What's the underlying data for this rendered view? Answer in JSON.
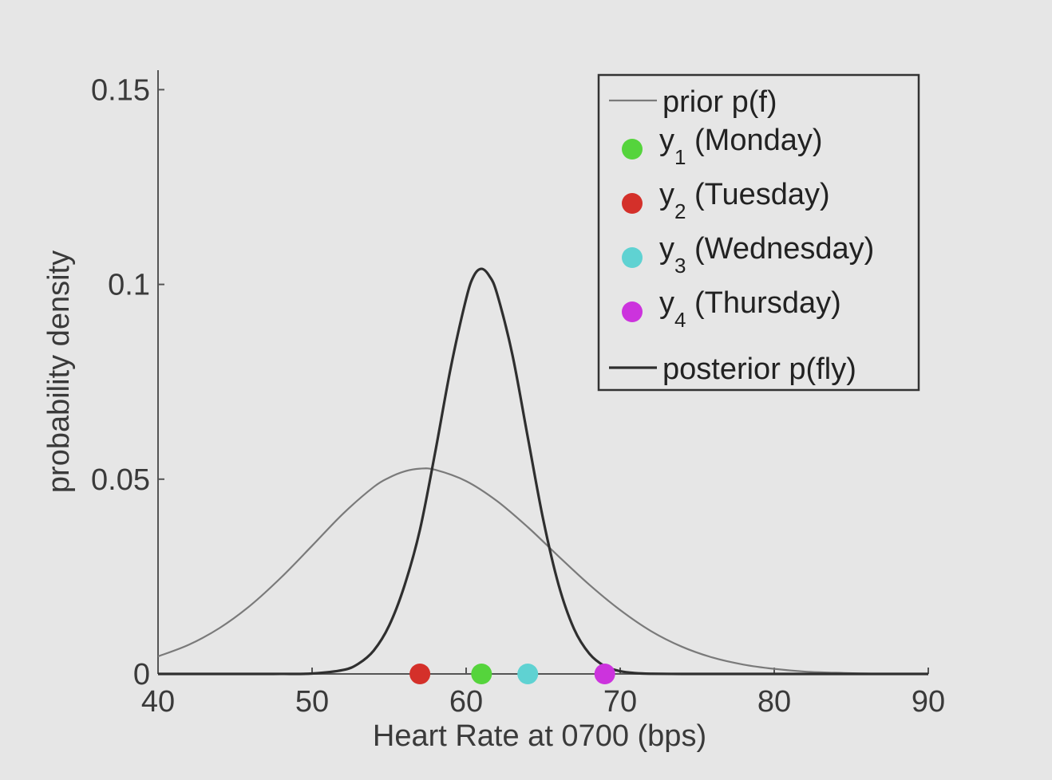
{
  "chart_data": {
    "type": "line",
    "xlabel": "Heart Rate at 0700 (bps)",
    "ylabel": "probability density",
    "xlim": [
      40,
      90
    ],
    "ylim": [
      0,
      0.155
    ],
    "x_ticks": [
      40,
      50,
      60,
      70,
      80,
      90
    ],
    "x_tick_labels": [
      "40",
      "50",
      "60",
      "70",
      "80",
      "90"
    ],
    "y_ticks": [
      0,
      0.05,
      0.1,
      0.15
    ],
    "y_tick_labels": [
      "0",
      "0.05",
      "0.1",
      "0.15"
    ],
    "grid": false,
    "legend_position": "top-right",
    "series": [
      {
        "name": "prior p(f)",
        "kind": "line",
        "color": "#7a7a7a",
        "x": [
          40,
          42,
          44,
          46,
          48,
          50,
          52,
          54,
          55,
          56,
          57,
          58,
          60,
          62,
          64,
          66,
          68,
          70,
          72,
          74,
          76,
          78,
          80,
          82,
          84,
          86,
          88,
          90
        ],
        "y": [
          0.0045,
          0.0075,
          0.0118,
          0.0176,
          0.0248,
          0.0329,
          0.0411,
          0.048,
          0.0504,
          0.052,
          0.0527,
          0.0524,
          0.0495,
          0.0444,
          0.0377,
          0.0302,
          0.0229,
          0.0164,
          0.011,
          0.007,
          0.0042,
          0.0024,
          0.0013,
          0.0006,
          0.0003,
          0.0001,
          5e-05,
          2e-05
        ]
      },
      {
        "name": "posterior p(fly)",
        "kind": "line",
        "color": "#2f2f2f",
        "x": [
          40,
          46,
          48,
          50,
          52,
          53,
          54,
          55,
          56,
          57,
          58,
          59,
          60,
          60.5,
          61,
          61.5,
          62,
          63,
          64,
          65,
          66,
          67,
          68,
          69,
          70,
          71,
          72,
          74,
          76,
          80,
          90
        ],
        "y": [
          0,
          0,
          1e-05,
          0.0001,
          0.001,
          0.0026,
          0.006,
          0.0124,
          0.0227,
          0.037,
          0.0571,
          0.0786,
          0.0963,
          0.1022,
          0.104,
          0.1022,
          0.0977,
          0.082,
          0.0608,
          0.0397,
          0.0229,
          0.0116,
          0.0052,
          0.002,
          0.0007,
          0.0002,
          5e-05,
          0,
          0,
          0,
          0
        ]
      },
      {
        "name": "y1 (Monday)",
        "label_main": "y",
        "label_sub": "1",
        "label_rest": " (Monday)",
        "kind": "point",
        "color": "#55d43c",
        "x": [
          61
        ],
        "y": [
          0
        ]
      },
      {
        "name": "y2 (Tuesday)",
        "label_main": "y",
        "label_sub": "2",
        "label_rest": " (Tuesday)",
        "kind": "point",
        "color": "#d4302a",
        "x": [
          57
        ],
        "y": [
          0
        ]
      },
      {
        "name": "y3 (Wednesday)",
        "label_main": "y",
        "label_sub": "3",
        "label_rest": " (Wednesday)",
        "kind": "point",
        "color": "#5fd2d2",
        "x": [
          64
        ],
        "y": [
          0
        ]
      },
      {
        "name": "y4 (Thursday)",
        "label_main": "y",
        "label_sub": "4",
        "label_rest": " (Thursday)",
        "kind": "point",
        "color": "#cc33dd",
        "x": [
          69
        ],
        "y": [
          0
        ]
      }
    ]
  }
}
